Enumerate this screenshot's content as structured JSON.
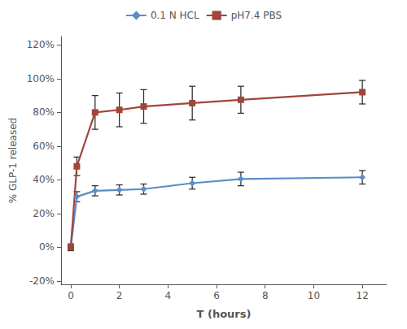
{
  "chart_data": {
    "type": "line",
    "xlabel": "T (hours)",
    "ylabel": "% GLP-1 released",
    "x": [
      0,
      0.25,
      1,
      2,
      3,
      5,
      7,
      12
    ],
    "series": [
      {
        "name": "0.1 N HCL",
        "color": "#5B8DC8",
        "marker": "diamond",
        "values": [
          0,
          0.3,
          0.335,
          0.34,
          0.345,
          0.38,
          0.405,
          0.415
        ],
        "errors": [
          0,
          0.03,
          0.03,
          0.03,
          0.03,
          0.035,
          0.04,
          0.04
        ]
      },
      {
        "name": "pH7.4 PBS",
        "color": "#A0453A",
        "marker": "square",
        "values": [
          0,
          0.48,
          0.8,
          0.815,
          0.835,
          0.855,
          0.875,
          0.92
        ],
        "errors": [
          0.02,
          0.055,
          0.1,
          0.1,
          0.1,
          0.1,
          0.08,
          0.07
        ]
      }
    ],
    "xlim": [
      -0.4,
      13
    ],
    "ylim": [
      -0.22,
      1.25
    ],
    "xticks": [
      0,
      2,
      4,
      6,
      8,
      10,
      12
    ],
    "yticks": [
      {
        "value": -0.2,
        "label": "-20%"
      },
      {
        "value": 0.0,
        "label": "0%"
      },
      {
        "value": 0.2,
        "label": "20%"
      },
      {
        "value": 0.4,
        "label": "40%"
      },
      {
        "value": 0.6,
        "label": "60%"
      },
      {
        "value": 0.8,
        "label": "80%"
      },
      {
        "value": 1.0,
        "label": "100%"
      },
      {
        "value": 1.2,
        "label": "120%"
      }
    ],
    "legend": "top",
    "grid": false
  }
}
